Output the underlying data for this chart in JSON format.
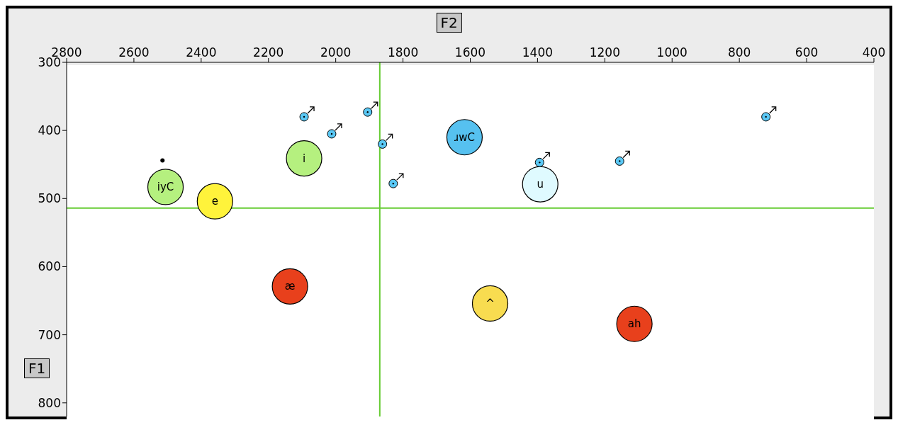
{
  "chart_data": {
    "type": "scatter",
    "xlabel": "F2",
    "ylabel": "F1",
    "xlim": [
      2800,
      400
    ],
    "ylim": [
      820,
      300
    ],
    "xticks": [
      2800,
      2600,
      2400,
      2200,
      2000,
      1800,
      1600,
      1400,
      1200,
      1000,
      800,
      600,
      400
    ],
    "yticks": [
      300,
      400,
      500,
      600,
      700,
      800
    ],
    "marker": "circle",
    "ref_lines": [
      {
        "axis": "x",
        "value": 1869,
        "color": "#66cc33"
      },
      {
        "axis": "y",
        "value": 514,
        "color": "#66cc33"
      }
    ],
    "series": [
      {
        "name": "iyC",
        "color": "#b5f07f",
        "x": [
          2506
        ],
        "values": [
          483
        ]
      },
      {
        "name": "e",
        "color": "#fff33b",
        "x": [
          2359
        ],
        "values": [
          504
        ]
      },
      {
        "name": "i",
        "color": "#b5f07f",
        "x": [
          2094
        ],
        "values": [
          441
        ]
      },
      {
        "name": "æ",
        "color": "#e8401c",
        "x": [
          2136
        ],
        "values": [
          629
        ]
      },
      {
        "name": "ɹwC",
        "color": "#56c1f0",
        "x": [
          1617
        ],
        "values": [
          410
        ]
      },
      {
        "name": "u",
        "color": "#dffaff",
        "x": [
          1392
        ],
        "values": [
          479
        ]
      },
      {
        "name": "^",
        "color": "#f8dc50",
        "x": [
          1541
        ],
        "values": [
          654
        ]
      },
      {
        "name": "ah",
        "color": "#e8401c",
        "x": [
          1112
        ],
        "values": [
          684
        ]
      },
      {
        "color": "#000000",
        "x": [
          2515
        ],
        "values": [
          444
        ]
      },
      {
        "color": "#5ac8f5",
        "marker": "circle",
        "x": [
          2094,
          2012,
          1905,
          1861,
          1829,
          1394,
          1156,
          721
        ],
        "values": [
          380,
          405,
          373,
          420,
          478,
          447,
          445,
          380
        ]
      }
    ]
  }
}
